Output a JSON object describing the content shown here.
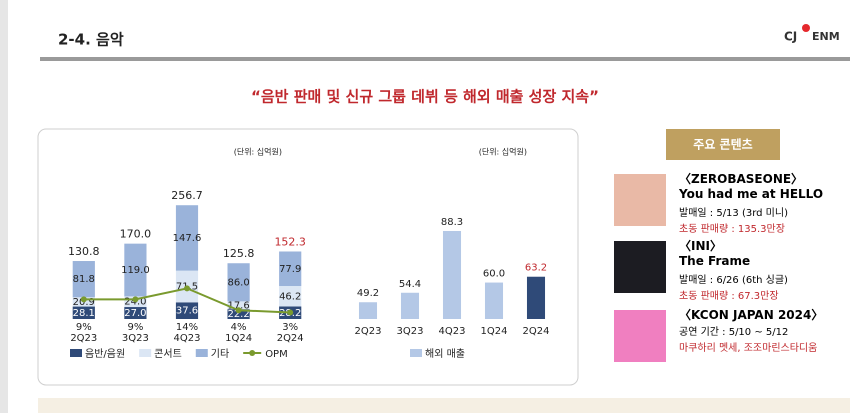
{
  "header": {
    "title": "2-4. 음악",
    "logo_left": "CJ",
    "logo_right": "ENM"
  },
  "headline": "“음반 판매 및 신규 그룹 데뷔 등 해외 매출 성장 지속”",
  "contents": {
    "title": "주요 콘텐츠",
    "items": [
      {
        "group": "〈ZEROBASEONE〉",
        "title": "You had me at HELLO",
        "info": "발매일 : 5/13 (3rd 미니)",
        "note": "초동 판매량 : 135.3만장",
        "color": "#e9b9a6"
      },
      {
        "group": "〈INI〉",
        "title": "The Frame",
        "info": "발매일 : 6/26 (6th 싱글)",
        "note": "초동 판매량 : 67.3만장",
        "color": "#1c1c22"
      },
      {
        "group": "〈KCON JAPAN 2024〉",
        "info": "공연 기간 : 5/10 ~ 5/12",
        "note": "마쿠하리 멧세, 조조마린스타디움",
        "color": "#f07fc0"
      }
    ]
  },
  "chart_data": [
    {
      "type": "bar",
      "stacked": true,
      "unit": "(단위: 십억원)",
      "categories": [
        "2Q23",
        "3Q23",
        "4Q23",
        "1Q24",
        "2Q24"
      ],
      "ylim": [
        0,
        370
      ],
      "y2lim": [
        0,
        75
      ],
      "series": [
        {
          "name": "음반/음원",
          "color": "#2f4a78",
          "values": [
            28.1,
            27.0,
            37.6,
            22.2,
            28.2
          ],
          "value_labels": [
            "28.1",
            "27.0",
            "37.6",
            "22.2",
            "28.2"
          ]
        },
        {
          "name": "콘서트",
          "color": "#dbe6f4",
          "values": [
            20.9,
            24.0,
            71.5,
            17.6,
            46.2
          ],
          "value_labels": [
            "20.9",
            "24.0",
            "71.5",
            "17.6",
            "46.2"
          ]
        },
        {
          "name": "기타",
          "color": "#9ab3da",
          "values": [
            81.8,
            119.0,
            147.6,
            86.0,
            77.9
          ],
          "value_labels": [
            "81.8",
            "119.0",
            "147.6",
            "86.0",
            "77.9"
          ]
        },
        {
          "name": "OPM",
          "type": "line",
          "axis": "y2",
          "color": "#7a9a2e",
          "values": [
            9,
            9,
            14,
            4,
            3
          ],
          "value_labels": [
            "9%",
            "9%",
            "14%",
            "4%",
            "3%"
          ]
        }
      ],
      "totals": [
        130.8,
        170.0,
        256.7,
        125.8,
        152.3
      ],
      "total_labels": [
        "130.8",
        "170.0",
        "256.7",
        "125.8",
        "152.3"
      ],
      "total_colors": [
        "#222",
        "#222",
        "#222",
        "#222",
        "#c0282d"
      ]
    },
    {
      "type": "bar",
      "unit": "(단위: 십억원)",
      "categories": [
        "2Q23",
        "3Q23",
        "4Q23",
        "1Q24",
        "2Q24"
      ],
      "ylim": [
        40,
        130
      ],
      "series": [
        {
          "name": "해외 매출",
          "color": "#b4c8e6",
          "values": [
            49.2,
            54.4,
            88.3,
            60.0,
            63.2
          ],
          "value_labels": [
            "49.2",
            "54.4",
            "88.3",
            "60.0",
            "63.2"
          ],
          "colors": [
            "#b4c8e6",
            "#b4c8e6",
            "#b4c8e6",
            "#b4c8e6",
            "#2f4a78"
          ],
          "label_colors": [
            "#222",
            "#222",
            "#222",
            "#222",
            "#c0282d"
          ]
        }
      ]
    }
  ]
}
